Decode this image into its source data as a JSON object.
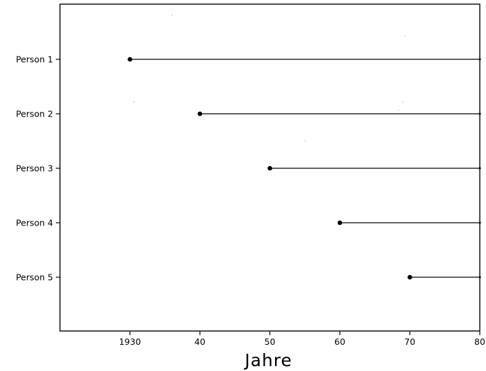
{
  "chart_data": {
    "type": "lifeline",
    "xlabel": "Jahre",
    "ylabel": "",
    "title": "",
    "xlim": [
      1920,
      1980
    ],
    "xticks": [
      {
        "value": 1930,
        "label": "1930"
      },
      {
        "value": 1940,
        "label": "40"
      },
      {
        "value": 1950,
        "label": "50"
      },
      {
        "value": 1960,
        "label": "60"
      },
      {
        "value": 1970,
        "label": "70"
      },
      {
        "value": 1980,
        "label": "80"
      }
    ],
    "categories": [
      "Person 1",
      "Person 2",
      "Person 3",
      "Person 4",
      "Person 5"
    ],
    "series": [
      {
        "category": "Person 1",
        "start": 1930,
        "end": 1980
      },
      {
        "category": "Person 2",
        "start": 1940,
        "end": 1980
      },
      {
        "category": "Person 3",
        "start": 1950,
        "end": 1980
      },
      {
        "category": "Person 4",
        "start": 1960,
        "end": 1980
      },
      {
        "category": "Person 5",
        "start": 1970,
        "end": 1980
      }
    ],
    "grid": false,
    "legend": "none"
  }
}
